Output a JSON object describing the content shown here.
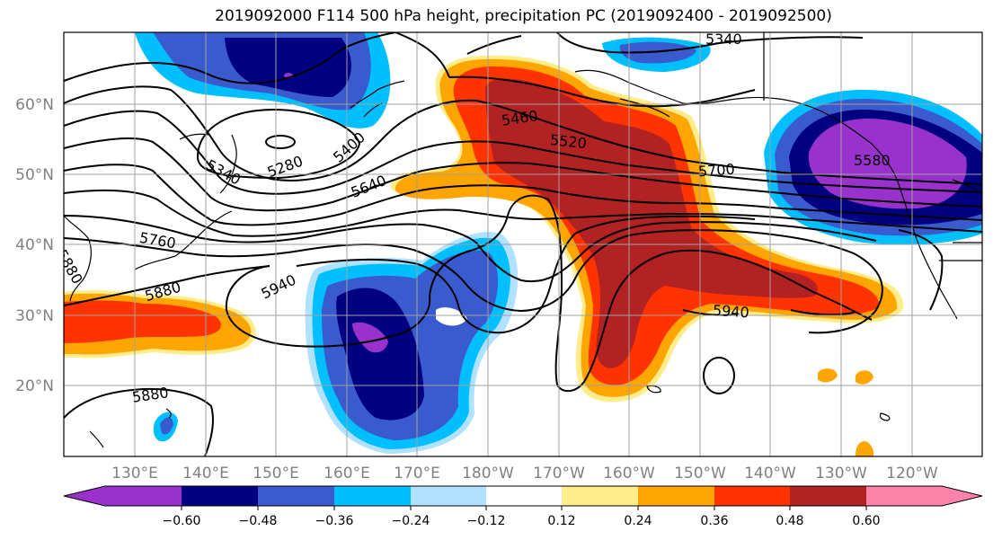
{
  "title": "2019092000 F114 500 hPa height, precipitation PC (2019092400 - 2019092500)",
  "lat_labels": [
    "60°N",
    "50°N",
    "40°N",
    "30°N",
    "20°N"
  ],
  "lon_labels": [
    "130°E",
    "140°E",
    "150°E",
    "160°E",
    "170°E",
    "180°W",
    "170°W",
    "160°W",
    "150°W",
    "140°W",
    "130°W",
    "120°W"
  ],
  "contour_labels": [
    "5340",
    "5460",
    "5520",
    "5280",
    "5400",
    "5340",
    "5640",
    "5700",
    "5580",
    "5760",
    "5880",
    "5940",
    "5940",
    "5880",
    "5880"
  ],
  "colorbar": {
    "ticks": [
      "−0.60",
      "−0.48",
      "−0.36",
      "−0.24",
      "−0.12",
      "0.12",
      "0.24",
      "0.36",
      "0.48",
      "0.60"
    ],
    "colors": [
      "#9932CC",
      "#000080",
      "#3A5BCD",
      "#00BFFF",
      "#B0E2FF",
      "#FFFFFF",
      "#FFEC8B",
      "#FFA500",
      "#FF3300",
      "#B22222",
      "#FF82AB"
    ]
  }
}
